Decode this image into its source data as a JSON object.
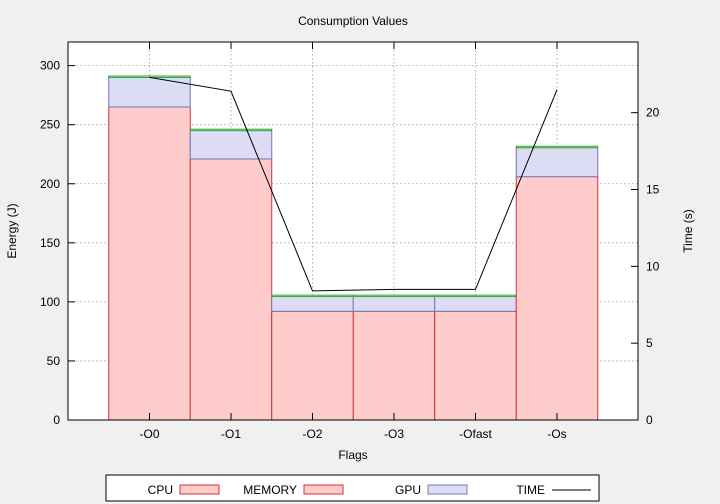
{
  "chart_data": {
    "type": "bar",
    "title": "Consumption Values",
    "xlabel": "Flags",
    "ylabel": "Energy (J)",
    "y2label": "Time (s)",
    "categories": [
      "-O0",
      "-O1",
      "-O2",
      "-O3",
      "-Ofast",
      "-Os"
    ],
    "ylim": [
      0,
      320
    ],
    "y2lim": [
      0,
      24.6
    ],
    "yticks": [
      0,
      50,
      100,
      150,
      200,
      250,
      300
    ],
    "y2ticks": [
      0,
      5,
      10,
      15,
      20
    ],
    "stacked": true,
    "grid": true,
    "legend_position": "bottom",
    "series": [
      {
        "name": "CPU",
        "values": [
          0,
          0,
          0,
          0,
          0,
          0
        ],
        "color": "#ffcccc",
        "stroke": "#cc3333",
        "kind": "bar"
      },
      {
        "name": "MEMORY",
        "values": [
          265,
          221,
          92,
          92,
          92,
          206
        ],
        "color": "#ffcccc",
        "stroke": "#d03030",
        "kind": "bar"
      },
      {
        "name": "GPU",
        "values": [
          25,
          24,
          12.5,
          12.5,
          12.5,
          24.5
        ],
        "color": "#dcdcf4",
        "stroke": "#7777bb",
        "kind": "bar"
      },
      {
        "name": "TIME",
        "values": [
          1.2,
          1.2,
          1.2,
          1.2,
          1.2,
          1.2
        ],
        "color": "#d0f0d0",
        "stroke": "#33aa33",
        "kind": "bar"
      },
      {
        "name": "TIME",
        "values": [
          22.3,
          21.4,
          8.4,
          8.5,
          8.5,
          21.5
        ],
        "color": "#000000",
        "kind": "line",
        "axis": "y2"
      }
    ]
  }
}
